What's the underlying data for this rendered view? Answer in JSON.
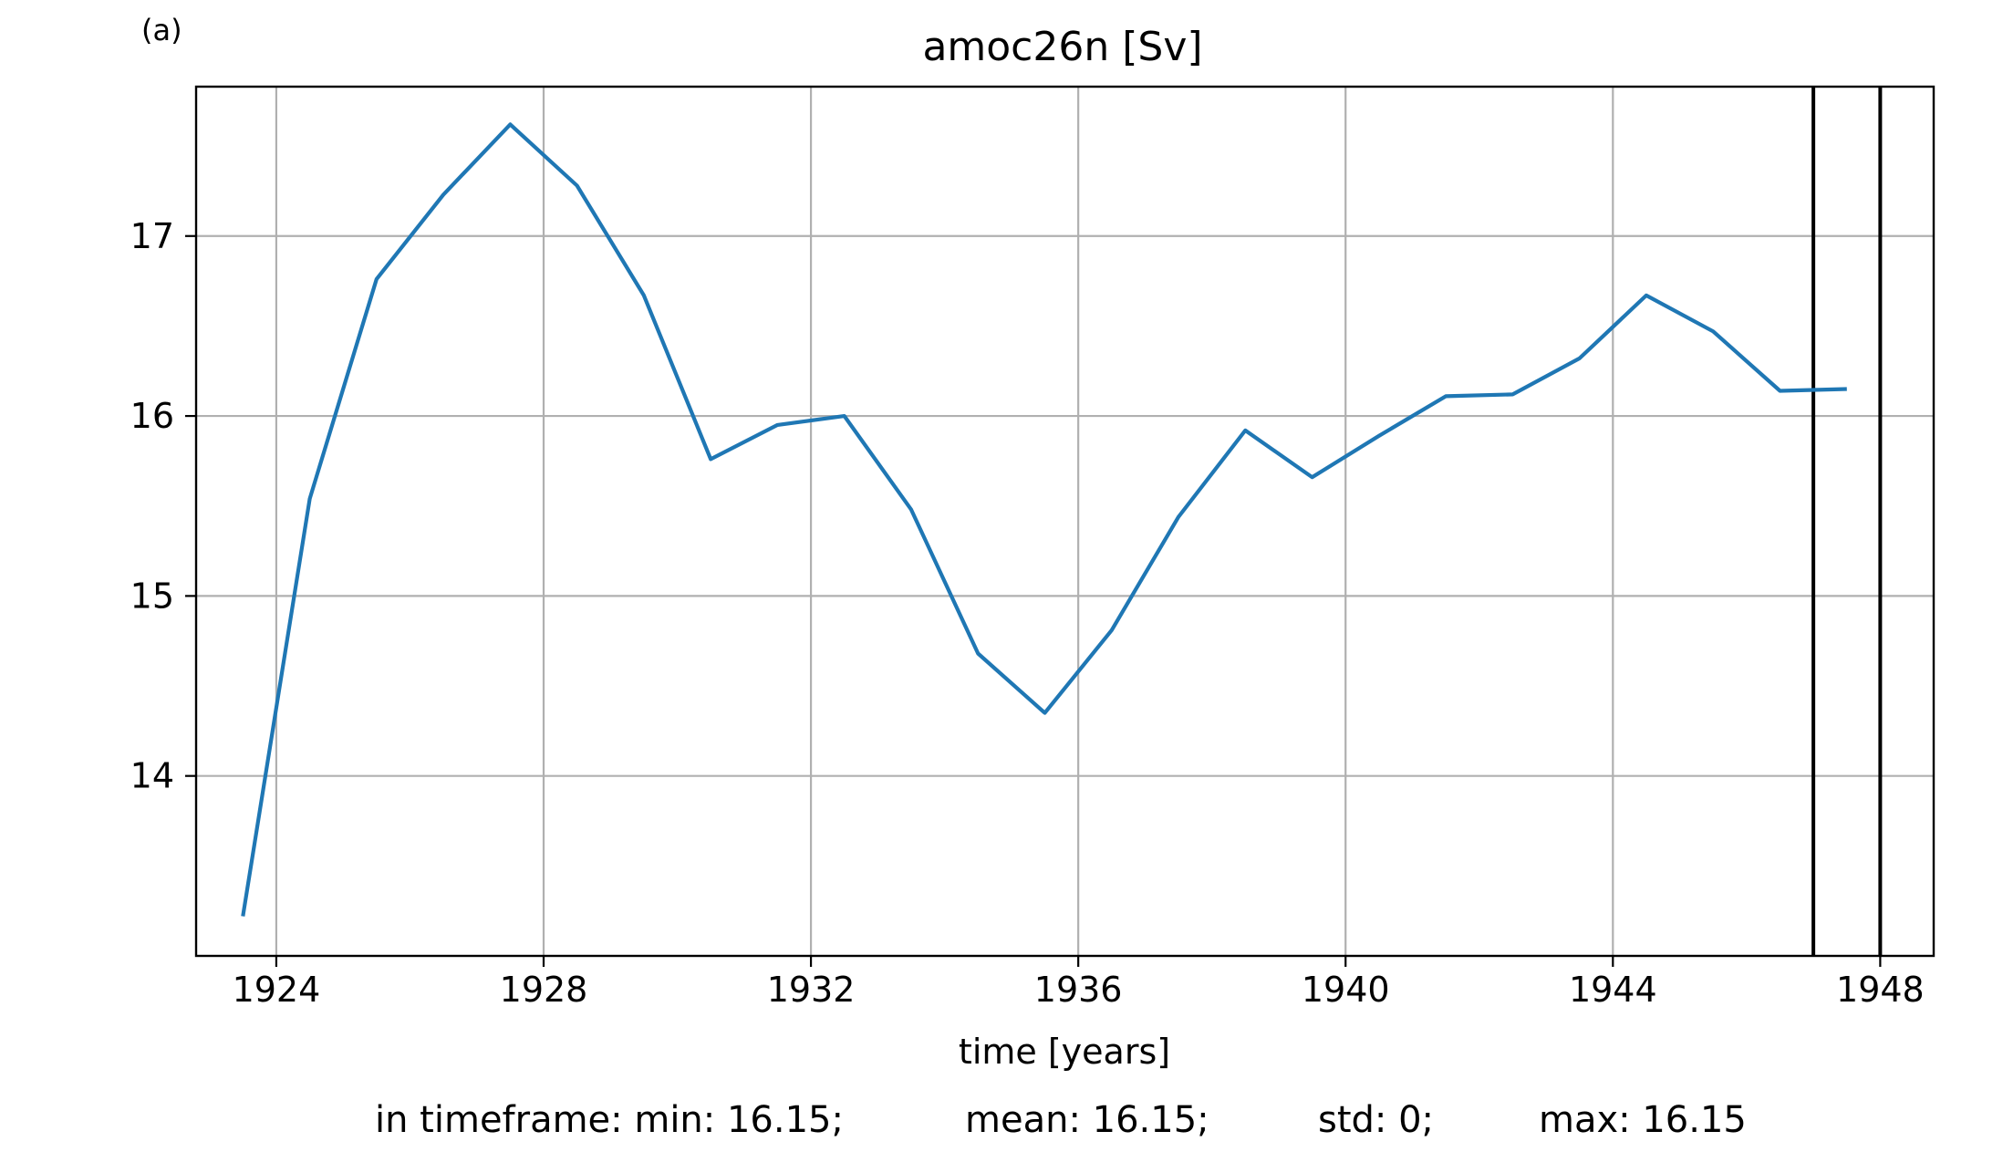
{
  "panel_label": "(a)",
  "stats": {
    "min": "in timeframe: min: 16.15;",
    "mean": "mean: 16.15;",
    "std": "std: 0;",
    "max": "max: 16.15"
  },
  "colors": {
    "series": "#1f77b4",
    "grid": "#b0b0b0",
    "axes": "#000000",
    "markers": "#000000"
  },
  "chart_data": {
    "type": "line",
    "title": "amoc26n [Sv]",
    "xlabel": "time [years]",
    "ylabel": "",
    "xlim": [
      1922.8,
      1948.8
    ],
    "ylim": [
      13.0,
      17.83
    ],
    "xticks": [
      1924,
      1928,
      1932,
      1936,
      1940,
      1944,
      1948
    ],
    "yticks": [
      14,
      15,
      16,
      17
    ],
    "grid": true,
    "vlines": [
      1947.0,
      1948.0
    ],
    "series": [
      {
        "x": [
          1923.5,
          1924.5,
          1925.5,
          1926.5,
          1927.5,
          1928.5,
          1929.5,
          1930.5,
          1931.5,
          1932.5,
          1933.5,
          1934.5,
          1935.5,
          1936.5,
          1937.5,
          1938.5,
          1939.5,
          1940.5,
          1941.5,
          1942.5,
          1943.5,
          1944.5,
          1945.5,
          1946.5,
          1947.5
        ],
        "values": [
          13.22,
          15.54,
          16.76,
          17.23,
          17.62,
          17.28,
          16.67,
          15.76,
          15.95,
          16.0,
          15.48,
          14.68,
          14.35,
          14.81,
          15.44,
          15.92,
          15.66,
          15.89,
          16.11,
          16.12,
          16.32,
          16.67,
          16.47,
          16.14,
          16.15
        ]
      }
    ]
  }
}
